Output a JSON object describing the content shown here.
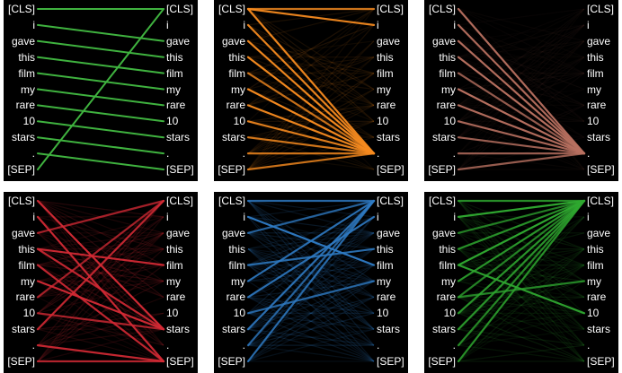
{
  "tokens": [
    "[CLS]",
    "i",
    "gave",
    "this",
    "film",
    "my",
    "rare",
    "10",
    "stars",
    ".",
    "[SEP]"
  ],
  "panels": [
    {
      "color": "#3fb23f",
      "pattern": "shift",
      "strong_edges": [
        [
          0,
          0
        ],
        [
          1,
          2
        ],
        [
          2,
          3
        ],
        [
          3,
          4
        ],
        [
          4,
          5
        ],
        [
          5,
          6
        ],
        [
          6,
          7
        ],
        [
          7,
          8
        ],
        [
          8,
          9
        ],
        [
          9,
          10
        ],
        [
          10,
          0
        ]
      ],
      "faint_alpha": 0.0
    },
    {
      "color": "#f58a1f",
      "pattern": "to-period",
      "strong_edges": [
        [
          0,
          9
        ],
        [
          1,
          9
        ],
        [
          2,
          9
        ],
        [
          3,
          9
        ],
        [
          4,
          9
        ],
        [
          5,
          9
        ],
        [
          6,
          9
        ],
        [
          7,
          9
        ],
        [
          8,
          9
        ],
        [
          9,
          9
        ],
        [
          10,
          9
        ],
        [
          0,
          0
        ],
        [
          0,
          1
        ]
      ],
      "faint_alpha": 0.12
    },
    {
      "color": "#b87060",
      "pattern": "to-period",
      "strong_edges": [
        [
          0,
          9
        ],
        [
          1,
          9
        ],
        [
          2,
          9
        ],
        [
          3,
          9
        ],
        [
          4,
          9
        ],
        [
          5,
          9
        ],
        [
          6,
          9
        ],
        [
          7,
          9
        ],
        [
          8,
          9
        ],
        [
          9,
          9
        ],
        [
          10,
          9
        ]
      ],
      "faint_alpha": 0.06
    },
    {
      "color": "#d42a35",
      "pattern": "mixed",
      "strong_edges": [
        [
          0,
          8
        ],
        [
          1,
          10
        ],
        [
          2,
          0
        ],
        [
          3,
          4
        ],
        [
          4,
          10
        ],
        [
          5,
          8
        ],
        [
          6,
          0
        ],
        [
          7,
          8
        ],
        [
          8,
          0
        ],
        [
          9,
          10
        ],
        [
          10,
          10
        ],
        [
          3,
          8
        ]
      ],
      "faint_alpha": 0.18
    },
    {
      "color": "#2f7bc4",
      "pattern": "mixed",
      "strong_edges": [
        [
          0,
          0
        ],
        [
          1,
          4
        ],
        [
          2,
          0
        ],
        [
          4,
          3
        ],
        [
          5,
          0
        ],
        [
          6,
          1
        ],
        [
          7,
          5
        ],
        [
          8,
          0
        ],
        [
          9,
          0
        ],
        [
          10,
          0
        ]
      ],
      "faint_alpha": 0.2
    },
    {
      "color": "#2fa830",
      "pattern": "to-cls",
      "strong_edges": [
        [
          0,
          0
        ],
        [
          1,
          0
        ],
        [
          2,
          0
        ],
        [
          3,
          0
        ],
        [
          4,
          0
        ],
        [
          5,
          0
        ],
        [
          6,
          0
        ],
        [
          7,
          0
        ],
        [
          8,
          0
        ],
        [
          9,
          0
        ],
        [
          10,
          0
        ],
        [
          4,
          7
        ],
        [
          6,
          5
        ]
      ],
      "faint_alpha": 0.15
    }
  ]
}
